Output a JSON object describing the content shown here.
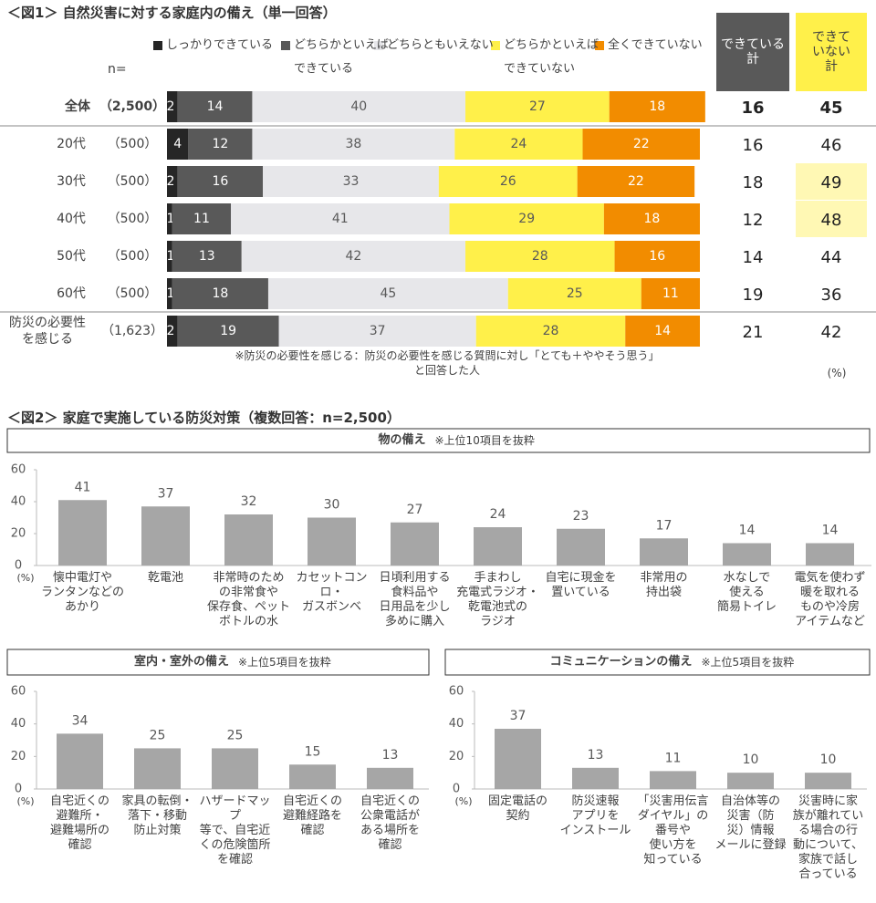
{
  "chart_data": [
    {
      "type": "stacked-bar-h",
      "title": "＜図1＞ 自然災害に対する家庭内の備え（単一回答）",
      "n_label": "n=",
      "categories": [
        "全体",
        "20代",
        "30代",
        "40代",
        "50代",
        "60代",
        "防災の必要性\nを感じる"
      ],
      "n": [
        "（2,500）",
        "（500）",
        "（500）",
        "（500）",
        "（500）",
        "（500）",
        "（1,623）"
      ],
      "xlim": [
        0,
        100
      ],
      "series": [
        {
          "name": "しっかりできている",
          "color": "#262626",
          "values": [
            2,
            4,
            2,
            1,
            1,
            1,
            2
          ]
        },
        {
          "name": "どちらかといえば\nできている",
          "color": "#595959",
          "values": [
            14,
            12,
            16,
            11,
            13,
            18,
            19
          ]
        },
        {
          "name": "どちらともいえない",
          "color": "#e7e7ea",
          "values": [
            40,
            38,
            33,
            41,
            42,
            45,
            37
          ]
        },
        {
          "name": "どちらかといえば\nできていない",
          "color": "#fff04a",
          "values": [
            27,
            24,
            26,
            29,
            28,
            25,
            28
          ]
        },
        {
          "name": "全くできていない",
          "color": "#f28c00",
          "values": [
            18,
            22,
            22,
            18,
            16,
            11,
            14
          ]
        }
      ],
      "summary": {
        "headers": [
          "できている\n計",
          "できて\nいない計"
        ],
        "columns": [
          [
            16,
            16,
            18,
            12,
            14,
            19,
            21
          ],
          [
            45,
            46,
            49,
            48,
            44,
            36,
            42
          ]
        ]
      },
      "note": "※防災の必要性を感じる：防災の必要性を感じる質問に対し「とても＋ややそう思う」と回答した人",
      "unit": "(%)"
    },
    {
      "type": "bar",
      "section_title": "＜図2＞ 家庭で実施している防災対策（複数回答：n=2,500）",
      "title": "物の備え",
      "subtitle": "※上位10項目を抜粋",
      "categories": [
        "懐中電灯や\nランタンなどの\nあかり",
        "乾電池",
        "非常時のため\nの非常食や\n保存食、ペット\nボトルの水",
        "カセットコンロ・\nガスボンベ",
        "日頃利用する\n食料品や\n日用品を少し\n多めに購入",
        "手まわし\n充電式ラジオ・\n乾電池式の\nラジオ",
        "自宅に現金を\n置いている",
        "非常用の\n持出袋",
        "水なしで\n使える\n簡易トイレ",
        "電気を使わず\n暖を取れる\nものや冷房\nアイテムなど"
      ],
      "values": [
        41,
        37,
        32,
        30,
        27,
        24,
        23,
        17,
        14,
        14
      ],
      "color": "#a6a6a6",
      "ylim": [
        0,
        60
      ],
      "yticks": [
        0,
        20,
        40,
        60
      ],
      "unit": "(%)"
    },
    {
      "type": "bar",
      "title": "室内・室外の備え",
      "subtitle": "※上位5項目を抜粋",
      "categories": [
        "自宅近くの\n避難所・\n避難場所の\n確認",
        "家具の転倒・\n落下・移動\n防止対策",
        "ハザードマップ\n等で、自宅近\nくの危険箇所\nを確認",
        "自宅近くの\n避難経路を\n確認",
        "自宅近くの\n公衆電話が\nある場所を\n確認"
      ],
      "values": [
        34,
        25,
        25,
        15,
        13
      ],
      "color": "#a6a6a6",
      "ylim": [
        0,
        60
      ],
      "yticks": [
        0,
        20,
        40,
        60
      ],
      "unit": "(%)"
    },
    {
      "type": "bar",
      "title": "コミュニケーションの備え",
      "subtitle": "※上位5項目を抜粋",
      "categories": [
        "固定電話の\n契約",
        "防災速報\nアプリを\nインストール",
        "「災害用伝言\nダイヤル」の\n番号や\n使い方を\n知っている",
        "自治体等の\n災害（防\n災）情報\nメールに登録",
        "災害時に家\n族が離れてい\nる場合の行\n動について、\n家族で話し\n合っている"
      ],
      "values": [
        37,
        13,
        11,
        10,
        10
      ],
      "color": "#a6a6a6",
      "ylim": [
        0,
        60
      ],
      "yticks": [
        0,
        20,
        40,
        60
      ],
      "unit": "(%)"
    }
  ]
}
